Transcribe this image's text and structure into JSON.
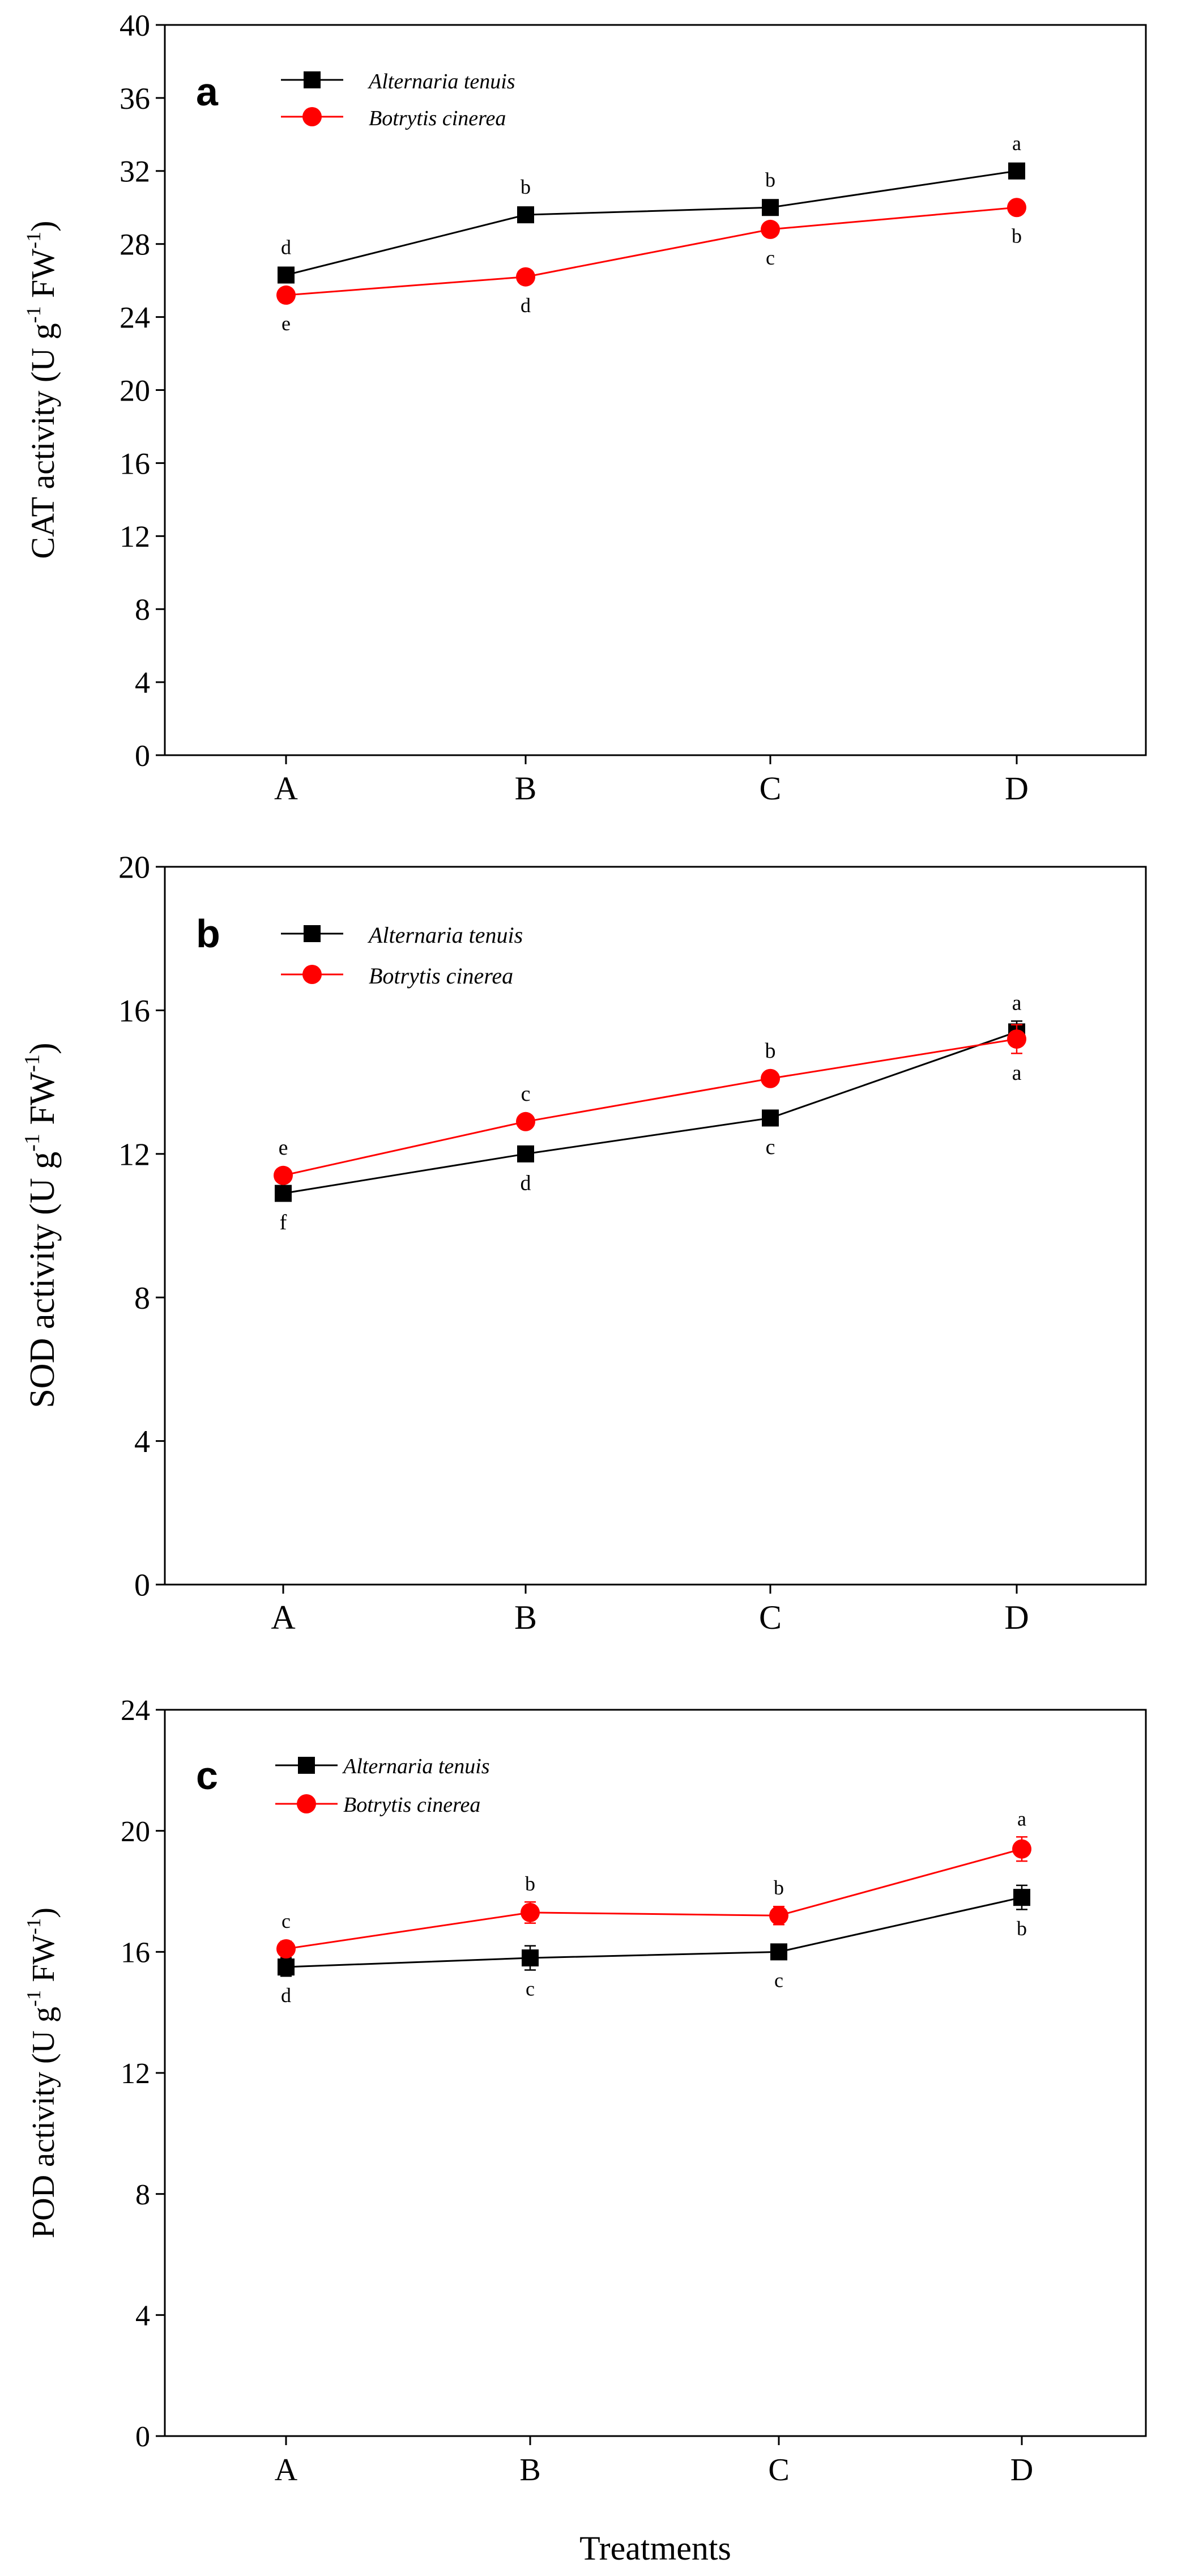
{
  "figure": {
    "xlabel": "Treatments"
  },
  "chart_data": [
    {
      "type": "line",
      "panel_label": "a",
      "title": "",
      "ylabel_main": "CAT activity (U g",
      "ylabel_sup1": "-1",
      "ylabel_mid": " FW",
      "ylabel_sup2": "-1",
      "ylabel_end": ")",
      "xlabel": "",
      "categories": [
        "A",
        "B",
        "C",
        "D"
      ],
      "ylim": [
        0,
        40
      ],
      "yticks": [
        0,
        4,
        8,
        12,
        16,
        20,
        24,
        28,
        32,
        36,
        40
      ],
      "legend_position": "top-left",
      "series": [
        {
          "name": "Alternaria tenuis",
          "color": "#000000",
          "marker": "square",
          "values": [
            26.3,
            29.6,
            30.0,
            32.0
          ],
          "errors": [
            0.3,
            0.3,
            0.3,
            0.4
          ],
          "letters": [
            "d",
            "b",
            "b",
            "a"
          ],
          "letter_side": [
            "above",
            "above",
            "above",
            "above"
          ]
        },
        {
          "name": "Botrytis cinerea",
          "color": "#ff0000",
          "marker": "circle",
          "values": [
            25.2,
            26.2,
            28.8,
            30.0
          ],
          "errors": [
            0.3,
            0.3,
            0.3,
            0.3
          ],
          "letters": [
            "e",
            "d",
            "c",
            "b"
          ],
          "letter_side": [
            "below",
            "below",
            "below",
            "below"
          ]
        }
      ]
    },
    {
      "type": "line",
      "panel_label": "b",
      "title": "",
      "ylabel_main": "SOD activity (U g",
      "ylabel_sup1": "-1",
      "ylabel_mid": " FW",
      "ylabel_sup2": "-1",
      "ylabel_end": ")",
      "xlabel": "",
      "categories": [
        "A",
        "B",
        "C",
        "D"
      ],
      "ylim": [
        0,
        20
      ],
      "yticks": [
        0,
        4,
        8,
        12,
        16,
        20
      ],
      "legend_position": "top-left",
      "series": [
        {
          "name": "Alternaria tenuis",
          "color": "#000000",
          "marker": "square",
          "values": [
            10.9,
            12.0,
            13.0,
            15.4
          ],
          "errors": [
            0.15,
            0.15,
            0.2,
            0.3
          ],
          "letters": [
            "f",
            "d",
            "c",
            "a"
          ],
          "letter_side": [
            "below",
            "below",
            "below",
            "above"
          ]
        },
        {
          "name": "Botrytis cinerea",
          "color": "#ff0000",
          "marker": "circle",
          "values": [
            11.4,
            12.9,
            14.1,
            15.2
          ],
          "errors": [
            0.15,
            0.15,
            0.15,
            0.4
          ],
          "letters": [
            "e",
            "c",
            "b",
            "a"
          ],
          "letter_side": [
            "above",
            "above",
            "above",
            "below"
          ]
        }
      ]
    },
    {
      "type": "line",
      "panel_label": "c",
      "title": "",
      "ylabel_main": "POD activity (U g",
      "ylabel_sup1": "-1",
      "ylabel_mid": " FW",
      "ylabel_sup2": "-1",
      "ylabel_end": ")",
      "xlabel": "",
      "categories": [
        "A",
        "B",
        "C",
        "D"
      ],
      "ylim": [
        0,
        24
      ],
      "yticks": [
        0,
        4,
        8,
        12,
        16,
        20,
        24
      ],
      "legend_position": "top-left",
      "series": [
        {
          "name": "Alternaria tenuis",
          "color": "#000000",
          "marker": "square",
          "values": [
            15.5,
            15.8,
            16.0,
            17.8
          ],
          "errors": [
            0.3,
            0.4,
            0.25,
            0.4
          ],
          "letters": [
            "d",
            "c",
            "c",
            "b"
          ],
          "letter_side": [
            "below",
            "below",
            "below",
            "below"
          ]
        },
        {
          "name": "Botrytis cinerea",
          "color": "#ff0000",
          "marker": "circle",
          "values": [
            16.1,
            17.3,
            17.2,
            19.4
          ],
          "errors": [
            0.25,
            0.35,
            0.3,
            0.4
          ],
          "letters": [
            "c",
            "b",
            "b",
            "a"
          ],
          "letter_side": [
            "above",
            "above",
            "above",
            "above"
          ]
        }
      ]
    }
  ]
}
